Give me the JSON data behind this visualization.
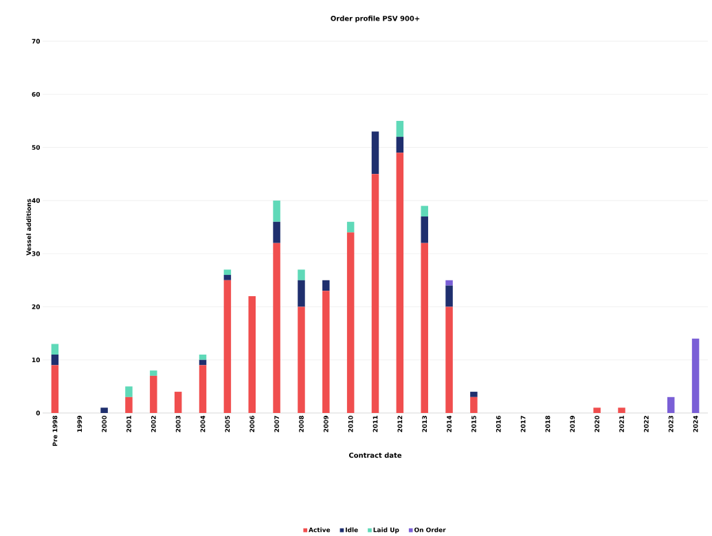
{
  "chart_data": {
    "type": "bar",
    "stacked": true,
    "title": "Order profile PSV 900+",
    "xlabel": "Contract date",
    "ylabel": "Vessel additions",
    "categories": [
      "Pre 1998",
      "1999",
      "2000",
      "2001",
      "2002",
      "2003",
      "2004",
      "2005",
      "2006",
      "2007",
      "2008",
      "2009",
      "2010",
      "2011",
      "2012",
      "2013",
      "2014",
      "2015",
      "2016",
      "2017",
      "2018",
      "2019",
      "2020",
      "2021",
      "2022",
      "2023",
      "2024"
    ],
    "series": [
      {
        "name": "Active",
        "color": "#f04e4e",
        "values": [
          9,
          0,
          0,
          3,
          7,
          4,
          9,
          25,
          22,
          32,
          20,
          23,
          34,
          45,
          49,
          32,
          20,
          3,
          0,
          0,
          0,
          0,
          1,
          1,
          0,
          0,
          0
        ]
      },
      {
        "name": "Idle",
        "color": "#1f2f6e",
        "values": [
          2,
          0,
          1,
          0,
          0,
          0,
          1,
          1,
          0,
          4,
          5,
          2,
          0,
          8,
          3,
          5,
          4,
          1,
          0,
          0,
          0,
          0,
          0,
          0,
          0,
          0,
          0
        ]
      },
      {
        "name": "Laid Up",
        "color": "#5fd9b8",
        "values": [
          2,
          0,
          0,
          2,
          1,
          0,
          1,
          1,
          0,
          4,
          2,
          0,
          2,
          0,
          3,
          2,
          0,
          0,
          0,
          0,
          0,
          0,
          0,
          0,
          0,
          0,
          0
        ]
      },
      {
        "name": "On Order",
        "color": "#7a5fd6",
        "values": [
          0,
          0,
          0,
          0,
          0,
          0,
          0,
          0,
          0,
          0,
          0,
          0,
          0,
          0,
          0,
          0,
          1,
          0,
          0,
          0,
          0,
          0,
          0,
          0,
          0,
          3,
          14
        ]
      }
    ],
    "ylim": [
      0,
      70
    ],
    "yticks": [
      0,
      10,
      20,
      30,
      40,
      50,
      60,
      70
    ],
    "grid": "y",
    "legend": "bottom"
  }
}
